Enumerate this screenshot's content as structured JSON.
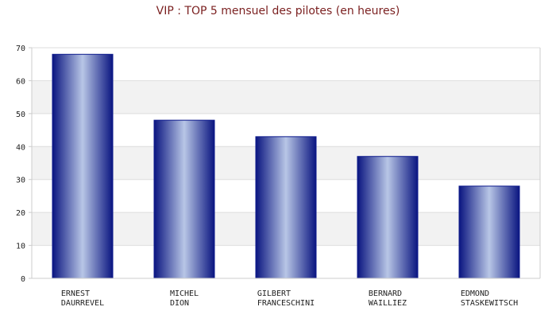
{
  "chart_data": {
    "type": "bar",
    "title": "VIP : TOP 5 mensuel des pilotes (en heures)",
    "xlabel": "",
    "ylabel": "",
    "ylim": [
      0,
      70
    ],
    "yticks": [
      0,
      10,
      20,
      30,
      40,
      50,
      60,
      70
    ],
    "grid": true,
    "categories": [
      [
        "ERNEST",
        "DAURREVEL"
      ],
      [
        "MICHEL",
        "DION"
      ],
      [
        "GILBERT",
        "FRANCESCHINI"
      ],
      [
        "BERNARD",
        "WAILLIEZ"
      ],
      [
        "EDMOND",
        "STASKEWITSCH"
      ]
    ],
    "values": [
      68,
      48,
      43,
      37,
      28
    ]
  },
  "colors": {
    "bar_edge": "#0d1a8c",
    "bar_dark": "#0a1580",
    "bar_light": "#b8c6e6",
    "band": "#f2f2f2",
    "axis": "#cccccc",
    "title": "#7a1f1f"
  }
}
